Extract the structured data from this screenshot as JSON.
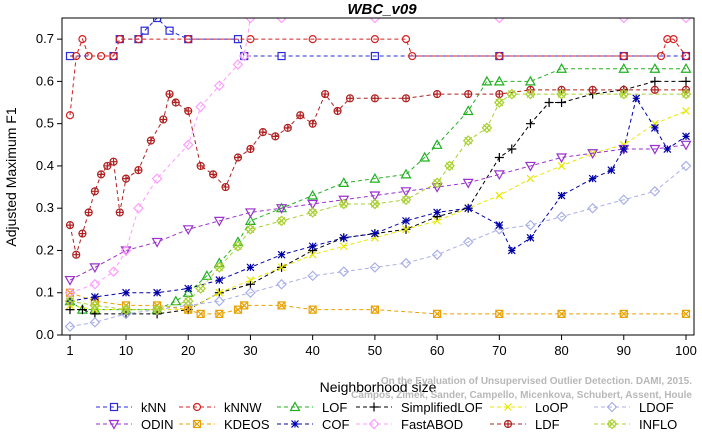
{
  "chart_data": {
    "type": "line",
    "title": "WBC_v09",
    "xlabel": "Neighborhood size",
    "ylabel": "Adjusted Maximum F1",
    "xlim": [
      1,
      100
    ],
    "ylim": [
      0,
      0.75
    ],
    "xticks": [
      "1",
      "10",
      "20",
      "30",
      "40",
      "50",
      "60",
      "70",
      "80",
      "90",
      "100"
    ],
    "yticks": [
      "0.0",
      "0.1",
      "0.2",
      "0.3",
      "0.4",
      "0.5",
      "0.6",
      "0.7"
    ],
    "grid": false,
    "legend_position": "bottom",
    "watermark": "Campos, Zimek, Sander, Campello, Micenkova, Schubert, Assent, Houle\nOn the Evaluation of Unsupervised Outlier Detection. DAMI, 2015.",
    "series": [
      {
        "name": "kNN",
        "color": "#2b2bdc",
        "marker": "square",
        "x": [
          1,
          8,
          9,
          12,
          13,
          15,
          17,
          20,
          28,
          29,
          35,
          50,
          70,
          90,
          100
        ],
        "y": [
          0.66,
          0.66,
          0.7,
          0.7,
          0.72,
          0.75,
          0.72,
          0.7,
          0.7,
          0.66,
          0.66,
          0.66,
          0.66,
          0.66,
          0.66
        ]
      },
      {
        "name": "kNNW",
        "color": "#d42020",
        "marker": "circle",
        "x": [
          1,
          2,
          3,
          4,
          6,
          8,
          9,
          12,
          20,
          30,
          40,
          50,
          55,
          56,
          70,
          90,
          96,
          97,
          98,
          100
        ],
        "y": [
          0.52,
          0.66,
          0.7,
          0.66,
          0.66,
          0.66,
          0.7,
          0.7,
          0.7,
          0.7,
          0.7,
          0.7,
          0.7,
          0.66,
          0.66,
          0.66,
          0.66,
          0.7,
          0.7,
          0.66
        ]
      },
      {
        "name": "LOF",
        "color": "#22b022",
        "marker": "triangle",
        "x": [
          1,
          3,
          5,
          10,
          15,
          18,
          20,
          23,
          25,
          28,
          30,
          35,
          40,
          45,
          50,
          55,
          58,
          60,
          65,
          68,
          70,
          75,
          80,
          90,
          95,
          100
        ],
        "y": [
          0.08,
          0.06,
          0.06,
          0.06,
          0.06,
          0.08,
          0.1,
          0.14,
          0.17,
          0.22,
          0.27,
          0.3,
          0.33,
          0.36,
          0.37,
          0.38,
          0.42,
          0.45,
          0.53,
          0.6,
          0.6,
          0.6,
          0.63,
          0.63,
          0.63,
          0.63
        ]
      },
      {
        "name": "SimplifiedLOF",
        "color": "#000000",
        "marker": "plus",
        "x": [
          1,
          3,
          5,
          10,
          15,
          20,
          25,
          30,
          35,
          40,
          45,
          50,
          55,
          60,
          65,
          70,
          72,
          75,
          78,
          80,
          85,
          90,
          95,
          100
        ],
        "y": [
          0.06,
          0.06,
          0.05,
          0.05,
          0.05,
          0.06,
          0.1,
          0.12,
          0.16,
          0.2,
          0.23,
          0.24,
          0.25,
          0.28,
          0.3,
          0.42,
          0.44,
          0.5,
          0.55,
          0.55,
          0.57,
          0.58,
          0.6,
          0.6
        ]
      },
      {
        "name": "LoOP",
        "color": "#e8e800",
        "marker": "cross",
        "x": [
          1,
          5,
          10,
          15,
          20,
          25,
          30,
          35,
          40,
          45,
          50,
          55,
          60,
          65,
          70,
          75,
          80,
          85,
          90,
          95,
          100
        ],
        "y": [
          0.07,
          0.06,
          0.06,
          0.06,
          0.06,
          0.1,
          0.13,
          0.16,
          0.19,
          0.21,
          0.23,
          0.25,
          0.27,
          0.3,
          0.33,
          0.37,
          0.4,
          0.43,
          0.45,
          0.5,
          0.53
        ]
      },
      {
        "name": "LDOF",
        "color": "#aab0e8",
        "marker": "diamond",
        "x": [
          1,
          5,
          10,
          15,
          20,
          25,
          30,
          35,
          40,
          45,
          50,
          55,
          60,
          65,
          70,
          75,
          80,
          85,
          90,
          95,
          100
        ],
        "y": [
          0.02,
          0.03,
          0.05,
          0.06,
          0.07,
          0.08,
          0.1,
          0.12,
          0.14,
          0.15,
          0.16,
          0.17,
          0.19,
          0.22,
          0.25,
          0.26,
          0.28,
          0.3,
          0.32,
          0.34,
          0.4
        ]
      },
      {
        "name": "ODIN",
        "color": "#9a32cd",
        "marker": "triangle-down",
        "x": [
          1,
          5,
          10,
          15,
          20,
          25,
          30,
          35,
          40,
          45,
          50,
          55,
          60,
          65,
          70,
          75,
          80,
          85,
          90,
          95,
          100
        ],
        "y": [
          0.13,
          0.16,
          0.2,
          0.22,
          0.25,
          0.27,
          0.29,
          0.3,
          0.31,
          0.32,
          0.33,
          0.34,
          0.35,
          0.36,
          0.38,
          0.4,
          0.42,
          0.43,
          0.44,
          0.44,
          0.45
        ]
      },
      {
        "name": "KDEOS",
        "color": "#e8a000",
        "marker": "square-x",
        "x": [
          1,
          5,
          10,
          15,
          20,
          22,
          25,
          28,
          29,
          35,
          40,
          50,
          60,
          70,
          80,
          90,
          100
        ],
        "y": [
          0.1,
          0.08,
          0.07,
          0.07,
          0.06,
          0.05,
          0.05,
          0.06,
          0.07,
          0.07,
          0.06,
          0.06,
          0.05,
          0.05,
          0.05,
          0.05,
          0.05
        ]
      },
      {
        "name": "COF",
        "color": "#0000a8",
        "marker": "asterisk",
        "x": [
          1,
          5,
          10,
          15,
          20,
          25,
          30,
          35,
          40,
          45,
          50,
          55,
          60,
          65,
          70,
          72,
          75,
          80,
          85,
          88,
          90,
          92,
          95,
          97,
          100
        ],
        "y": [
          0.08,
          0.09,
          0.1,
          0.1,
          0.11,
          0.13,
          0.16,
          0.19,
          0.21,
          0.23,
          0.24,
          0.27,
          0.29,
          0.3,
          0.26,
          0.2,
          0.23,
          0.33,
          0.37,
          0.39,
          0.44,
          0.56,
          0.49,
          0.44,
          0.47
        ]
      },
      {
        "name": "FastABOD",
        "color": "#ff9cff",
        "marker": "diamond",
        "x": [
          1,
          5,
          8,
          10,
          12,
          15,
          20,
          22,
          25,
          28,
          29,
          30,
          35,
          50,
          70,
          90,
          100
        ],
        "y": [
          0.1,
          0.12,
          0.15,
          0.2,
          0.3,
          0.37,
          0.45,
          0.54,
          0.59,
          0.64,
          0.66,
          0.75,
          0.75,
          0.75,
          0.75,
          0.75,
          0.75
        ]
      },
      {
        "name": "LDF",
        "color": "#b02020",
        "marker": "circle-plus",
        "x": [
          1,
          2,
          3,
          4,
          5,
          6,
          7,
          8,
          9,
          10,
          12,
          14,
          16,
          17,
          18,
          20,
          22,
          24,
          26,
          28,
          30,
          32,
          34,
          36,
          38,
          40,
          42,
          44,
          46,
          50,
          55,
          60,
          65,
          70,
          75,
          80,
          85,
          90,
          95,
          100
        ],
        "y": [
          0.26,
          0.19,
          0.24,
          0.29,
          0.34,
          0.38,
          0.4,
          0.41,
          0.29,
          0.37,
          0.39,
          0.46,
          0.51,
          0.57,
          0.55,
          0.53,
          0.4,
          0.38,
          0.35,
          0.42,
          0.44,
          0.48,
          0.47,
          0.49,
          0.52,
          0.5,
          0.57,
          0.53,
          0.56,
          0.56,
          0.56,
          0.57,
          0.57,
          0.57,
          0.58,
          0.58,
          0.58,
          0.58,
          0.58,
          0.58
        ]
      },
      {
        "name": "INFLO",
        "color": "#a8d030",
        "marker": "star",
        "x": [
          1,
          5,
          10,
          15,
          20,
          22,
          25,
          28,
          30,
          35,
          40,
          45,
          50,
          55,
          60,
          62,
          65,
          68,
          70,
          72,
          75,
          80,
          90,
          100
        ],
        "y": [
          0.08,
          0.07,
          0.06,
          0.06,
          0.08,
          0.11,
          0.16,
          0.21,
          0.25,
          0.27,
          0.29,
          0.31,
          0.31,
          0.32,
          0.36,
          0.4,
          0.46,
          0.49,
          0.55,
          0.57,
          0.57,
          0.57,
          0.57,
          0.57
        ]
      }
    ]
  }
}
